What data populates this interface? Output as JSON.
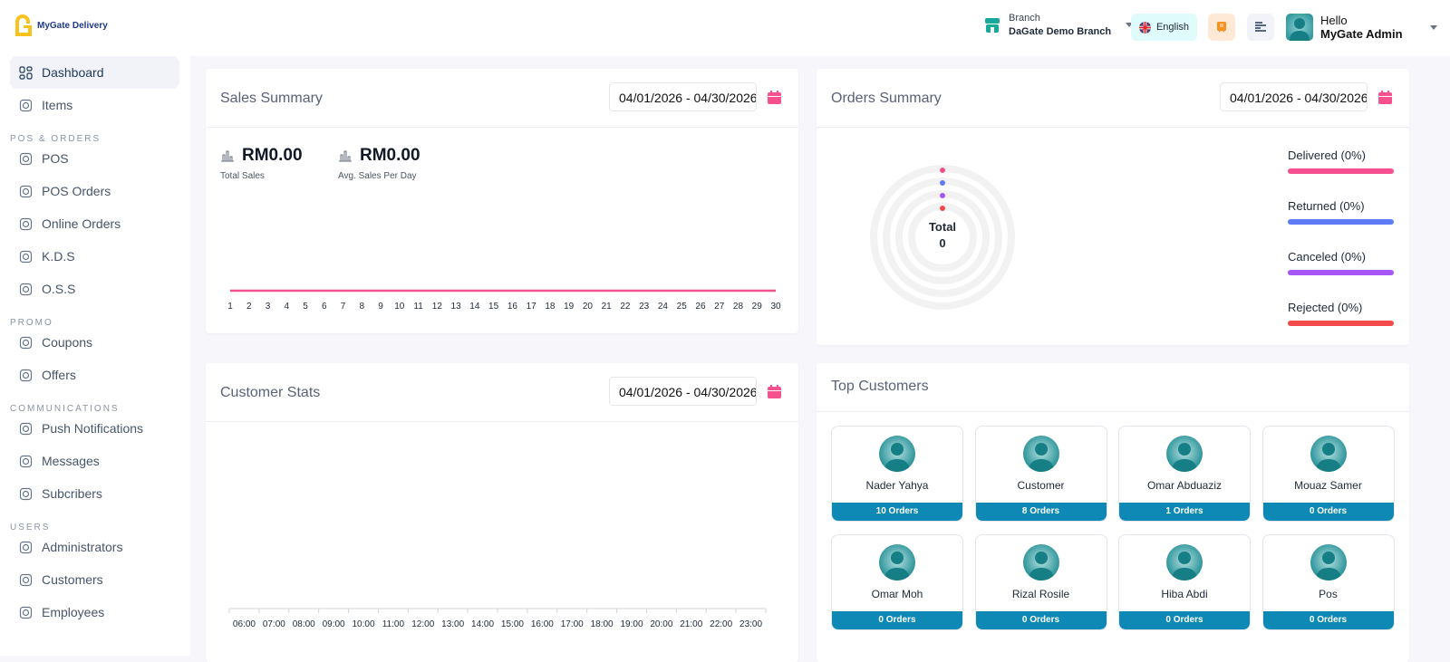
{
  "header": {
    "logo_text": "MyGate Delivery",
    "branch_label": "Branch",
    "branch_name": "DaGate Demo Branch",
    "language": "English",
    "greeting": "Hello",
    "user_name": "MyGate Admin"
  },
  "sidebar": {
    "items": [
      {
        "label": "Dashboard",
        "icon": "dashboard-icon",
        "active": true
      },
      {
        "label": "Items",
        "icon": "items-icon"
      },
      {
        "section": "POS & ORDERS"
      },
      {
        "label": "POS",
        "icon": "pos-icon"
      },
      {
        "label": "POS Orders",
        "icon": "pos-orders-icon"
      },
      {
        "label": "Online Orders",
        "icon": "bag-icon"
      },
      {
        "label": "K.D.S",
        "icon": "chef-hat-icon"
      },
      {
        "label": "O.S.S",
        "icon": "monitor-icon"
      },
      {
        "section": "PROMO"
      },
      {
        "label": "Coupons",
        "icon": "coupon-icon"
      },
      {
        "label": "Offers",
        "icon": "offer-icon"
      },
      {
        "section": "COMMUNICATIONS"
      },
      {
        "label": "Push Notifications",
        "icon": "notification-icon"
      },
      {
        "label": "Messages",
        "icon": "message-icon"
      },
      {
        "label": "Subcribers",
        "icon": "subscriber-icon"
      },
      {
        "section": "USERS"
      },
      {
        "label": "Administrators",
        "icon": "user-icon"
      },
      {
        "label": "Customers",
        "icon": "users-icon"
      },
      {
        "label": "Employees",
        "icon": "employee-icon"
      }
    ]
  },
  "sales": {
    "title": "Sales Summary",
    "date_range": "04/01/2026  -  04/30/2026",
    "total_sales": "RM0.00",
    "total_sales_label": "Total Sales",
    "avg_sales": "RM0.00",
    "avg_sales_label": "Avg. Sales Per Day"
  },
  "orders": {
    "title": "Orders Summary",
    "date_range": "04/01/2026  -  04/30/2026",
    "total_label": "Total",
    "total_value": "0",
    "legend": [
      {
        "label": "Delivered (0%)",
        "color": "#f7508e",
        "value": 0
      },
      {
        "label": "Returned (0%)",
        "color": "#5b7cf6",
        "value": 0
      },
      {
        "label": "Canceled (0%)",
        "color": "#a855f7",
        "value": 0
      },
      {
        "label": "Rejected (0%)",
        "color": "#f54a4a",
        "value": 0
      }
    ]
  },
  "customer_stats": {
    "title": "Customer Stats",
    "date_range": "04/01/2026  -  04/30/2026"
  },
  "top_customers": {
    "title": "Top Customers",
    "items": [
      {
        "name": "Nader Yahya",
        "orders": "10 Orders"
      },
      {
        "name": "Customer",
        "orders": "8 Orders"
      },
      {
        "name": "Omar Abduaziz",
        "orders": "1 Orders"
      },
      {
        "name": "Mouaz Samer",
        "orders": "0 Orders"
      },
      {
        "name": "Omar Moh",
        "orders": "0 Orders"
      },
      {
        "name": "Rizal Rosile",
        "orders": "0 Orders"
      },
      {
        "name": "Hiba Abdi",
        "orders": "0 Orders"
      },
      {
        "name": "Pos",
        "orders": "0 Orders"
      }
    ]
  },
  "colors": {
    "accent": "#f7508e",
    "order_badge": "#0e89b5",
    "logo": "#f7c21c"
  },
  "chart_data": [
    {
      "type": "line",
      "x": [
        "1",
        "2",
        "3",
        "4",
        "5",
        "6",
        "7",
        "8",
        "9",
        "10",
        "11",
        "12",
        "13",
        "14",
        "15",
        "16",
        "17",
        "18",
        "19",
        "20",
        "21",
        "22",
        "23",
        "24",
        "25",
        "26",
        "27",
        "28",
        "29",
        "30"
      ],
      "values": [
        0,
        0,
        0,
        0,
        0,
        0,
        0,
        0,
        0,
        0,
        0,
        0,
        0,
        0,
        0,
        0,
        0,
        0,
        0,
        0,
        0,
        0,
        0,
        0,
        0,
        0,
        0,
        0,
        0,
        0
      ],
      "color": "#f7508e",
      "grid": false
    },
    {
      "type": "bar",
      "x": [
        "06:00",
        "07:00",
        "08:00",
        "09:00",
        "10:00",
        "11:00",
        "12:00",
        "13:00",
        "14:00",
        "15:00",
        "16:00",
        "17:00",
        "18:00",
        "19:00",
        "20:00",
        "21:00",
        "22:00",
        "23:00"
      ],
      "values": [
        0,
        0,
        0,
        0,
        0,
        0,
        0,
        0,
        0,
        0,
        0,
        0,
        0,
        0,
        0,
        0,
        0,
        0
      ],
      "grid": true
    },
    {
      "type": "pie",
      "labels": [
        "Delivered",
        "Returned",
        "Canceled",
        "Rejected"
      ],
      "values": [
        0,
        0,
        0,
        0
      ],
      "total": 0
    }
  ]
}
